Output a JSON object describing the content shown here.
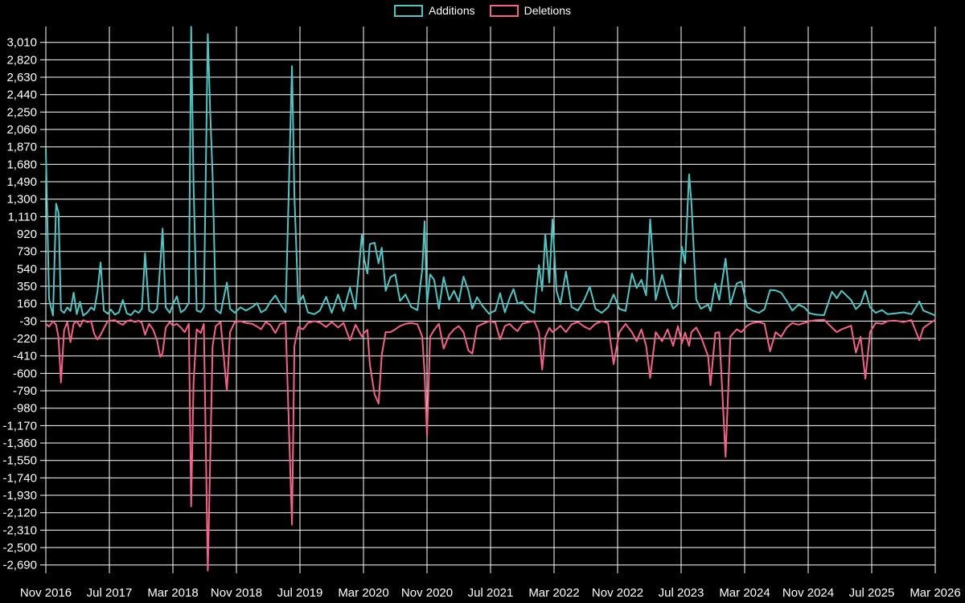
{
  "legend": {
    "additions_label": "Additions",
    "deletions_label": "Deletions"
  },
  "colors": {
    "background": "#000000",
    "grid": "#ffffff",
    "text": "#ffffff",
    "additions": "#4dc7c4",
    "deletions": "#f76188"
  },
  "chart_data": {
    "type": "line",
    "title": "",
    "xlabel": "",
    "ylabel": "",
    "legend_position": "top-center",
    "grid": true,
    "x_axis": {
      "tick_labels": [
        "Nov 2016",
        "Jul 2017",
        "Mar 2018",
        "Nov 2018",
        "Jul 2019",
        "Mar 2020",
        "Nov 2020",
        "Jul 2021",
        "Mar 2022",
        "Nov 2022",
        "Jul 2023",
        "Mar 2024",
        "Nov 2024",
        "Jul 2025",
        "Mar 2026"
      ],
      "months_between_ticks": 8,
      "total_months_span": 112
    },
    "y_axis": {
      "ticks": [
        3010,
        2820,
        2630,
        2440,
        2250,
        2060,
        1870,
        1680,
        1490,
        1300,
        1110,
        920,
        730,
        540,
        350,
        160,
        -30,
        -220,
        -410,
        -600,
        -790,
        -980,
        -1170,
        -1360,
        -1550,
        -1740,
        -1930,
        -2120,
        -2310,
        -2500,
        -2690
      ],
      "tick_labels": [
        "3,010",
        "2,820",
        "2,630",
        "2,440",
        "2,250",
        "2,060",
        "1,870",
        "1,680",
        "1,490",
        "1,300",
        "1,110",
        "920",
        "730",
        "540",
        "350",
        "160",
        "-30",
        "-220",
        "-410",
        "-600",
        "-790",
        "-980",
        "-1,170",
        "-1,360",
        "-1,550",
        "-1,740",
        "-1,930",
        "-2,120",
        "-2,310",
        "-2,500",
        "-2,690"
      ],
      "step": 190
    },
    "series_names": [
      "Additions",
      "Deletions"
    ],
    "points_format": "[months_since_Nov_2016, additions, deletions]",
    "points": [
      [
        0,
        1850,
        -60
      ],
      [
        0.4,
        210,
        -90
      ],
      [
        0.9,
        30,
        -30
      ],
      [
        1.3,
        1250,
        -70
      ],
      [
        1.6,
        1150,
        -210
      ],
      [
        1.9,
        90,
        -700
      ],
      [
        2.3,
        60,
        -130
      ],
      [
        2.7,
        120,
        -40
      ],
      [
        3.1,
        80,
        -260
      ],
      [
        3.5,
        280,
        -60
      ],
      [
        3.9,
        45,
        -30
      ],
      [
        4.3,
        180,
        -90
      ],
      [
        4.7,
        30,
        -20
      ],
      [
        5.2,
        60,
        -40
      ],
      [
        5.7,
        120,
        -30
      ],
      [
        6.1,
        90,
        -170
      ],
      [
        6.5,
        290,
        -230
      ],
      [
        6.9,
        610,
        -180
      ],
      [
        7.3,
        85,
        -110
      ],
      [
        7.8,
        50,
        -30
      ],
      [
        8.2,
        95,
        -25
      ],
      [
        8.7,
        40,
        -20
      ],
      [
        9.2,
        65,
        -50
      ],
      [
        9.7,
        200,
        -70
      ],
      [
        10.2,
        55,
        -30
      ],
      [
        10.7,
        35,
        -20
      ],
      [
        11.2,
        85,
        -40
      ],
      [
        11.7,
        60,
        -25
      ],
      [
        12.1,
        105,
        -50
      ],
      [
        12.5,
        710,
        -180
      ],
      [
        13,
        85,
        -60
      ],
      [
        13.5,
        60,
        -120
      ],
      [
        14,
        105,
        -240
      ],
      [
        14.4,
        570,
        -420
      ],
      [
        14.7,
        980,
        -380
      ],
      [
        15.1,
        120,
        -100
      ],
      [
        15.6,
        60,
        -40
      ],
      [
        16,
        150,
        -80
      ],
      [
        16.5,
        240,
        -60
      ],
      [
        17,
        65,
        -100
      ],
      [
        17.5,
        95,
        -150
      ],
      [
        18,
        170,
        -60
      ],
      [
        18.3,
        3180,
        -2050
      ],
      [
        18.6,
        1450,
        -700
      ],
      [
        19,
        85,
        -120
      ],
      [
        19.5,
        70,
        -160
      ],
      [
        19.9,
        120,
        -60
      ],
      [
        20.4,
        3100,
        -2750
      ],
      [
        20.7,
        2250,
        -1540
      ],
      [
        21,
        1550,
        -300
      ],
      [
        21.4,
        95,
        -85
      ],
      [
        22,
        55,
        -40
      ],
      [
        22.8,
        390,
        -790
      ],
      [
        23.2,
        105,
        -150
      ],
      [
        23.8,
        60,
        -40
      ],
      [
        24.5,
        120,
        -30
      ],
      [
        25.2,
        85,
        -50
      ],
      [
        26,
        125,
        -60
      ],
      [
        26.6,
        165,
        -90
      ],
      [
        27.1,
        65,
        -120
      ],
      [
        27.7,
        95,
        -40
      ],
      [
        28.3,
        185,
        -75
      ],
      [
        28.9,
        250,
        -160
      ],
      [
        29.5,
        160,
        -60
      ],
      [
        30.2,
        65,
        -45
      ],
      [
        31,
        2750,
        -2250
      ],
      [
        31.3,
        1340,
        -300
      ],
      [
        31.8,
        155,
        -95
      ],
      [
        32.4,
        250,
        -120
      ],
      [
        33,
        65,
        -50
      ],
      [
        33.8,
        45,
        -30
      ],
      [
        34.5,
        85,
        -45
      ],
      [
        35.3,
        235,
        -95
      ],
      [
        36,
        60,
        -40
      ],
      [
        36.8,
        260,
        -100
      ],
      [
        37.5,
        80,
        -50
      ],
      [
        38.3,
        335,
        -240
      ],
      [
        39,
        105,
        -70
      ],
      [
        39.8,
        915,
        -200
      ],
      [
        40.1,
        640,
        -155
      ],
      [
        40.5,
        490,
        -125
      ],
      [
        40.8,
        810,
        -500
      ],
      [
        41.4,
        825,
        -830
      ],
      [
        41.9,
        600,
        -930
      ],
      [
        42.3,
        770,
        -400
      ],
      [
        42.8,
        300,
        -150
      ],
      [
        43.4,
        450,
        -150
      ],
      [
        44,
        480,
        -120
      ],
      [
        44.6,
        190,
        -85
      ],
      [
        45.3,
        260,
        -60
      ],
      [
        46,
        125,
        -50
      ],
      [
        46.8,
        90,
        -65
      ],
      [
        47.4,
        535,
        -200
      ],
      [
        47.7,
        1060,
        -600
      ],
      [
        48,
        150,
        -1280
      ],
      [
        48.4,
        480,
        -200
      ],
      [
        48.9,
        420,
        -125
      ],
      [
        49.5,
        105,
        -60
      ],
      [
        50.1,
        450,
        -330
      ],
      [
        50.8,
        200,
        -180
      ],
      [
        51.4,
        300,
        -120
      ],
      [
        52,
        180,
        -85
      ],
      [
        52.6,
        455,
        -150
      ],
      [
        53.2,
        305,
        -350
      ],
      [
        53.7,
        105,
        -385
      ],
      [
        54.3,
        230,
        -90
      ],
      [
        55,
        135,
        -60
      ],
      [
        55.8,
        50,
        -30
      ],
      [
        56.6,
        85,
        -45
      ],
      [
        57.2,
        275,
        -230
      ],
      [
        57.8,
        65,
        -85
      ],
      [
        58.4,
        220,
        -60
      ],
      [
        58.9,
        320,
        -105
      ],
      [
        59.4,
        160,
        -140
      ],
      [
        60,
        180,
        -60
      ],
      [
        60.8,
        95,
        -40
      ],
      [
        61.5,
        60,
        -30
      ],
      [
        62.1,
        580,
        -150
      ],
      [
        62.5,
        300,
        -560
      ],
      [
        62.9,
        915,
        -200
      ],
      [
        63.4,
        390,
        -105
      ],
      [
        63.8,
        1080,
        -150
      ],
      [
        64.3,
        300,
        -120
      ],
      [
        64.8,
        155,
        -80
      ],
      [
        65.5,
        510,
        -150
      ],
      [
        66.2,
        125,
        -65
      ],
      [
        67,
        85,
        -40
      ],
      [
        67.8,
        200,
        -90
      ],
      [
        68.5,
        345,
        -120
      ],
      [
        69.2,
        105,
        -60
      ],
      [
        70,
        60,
        -30
      ],
      [
        70.8,
        120,
        -50
      ],
      [
        71.5,
        260,
        -500
      ],
      [
        72.2,
        105,
        -155
      ],
      [
        73,
        80,
        -60
      ],
      [
        73.8,
        490,
        -150
      ],
      [
        74.4,
        330,
        -250
      ],
      [
        75,
        420,
        -120
      ],
      [
        75.6,
        250,
        -300
      ],
      [
        76.1,
        1080,
        -650
      ],
      [
        76.8,
        200,
        -150
      ],
      [
        77.6,
        475,
        -250
      ],
      [
        78.3,
        250,
        -120
      ],
      [
        79,
        105,
        -300
      ],
      [
        79.6,
        155,
        -85
      ],
      [
        80.1,
        780,
        -270
      ],
      [
        80.5,
        600,
        -155
      ],
      [
        81,
        1570,
        -300
      ],
      [
        81.3,
        1260,
        -150
      ],
      [
        81.9,
        205,
        -100
      ],
      [
        82.5,
        105,
        -200
      ],
      [
        83.4,
        150,
        -415
      ],
      [
        83.7,
        80,
        -730
      ],
      [
        84.3,
        380,
        -160
      ],
      [
        84.8,
        200,
        -150
      ],
      [
        85.6,
        650,
        -1510
      ],
      [
        86.2,
        150,
        -200
      ],
      [
        87,
        380,
        -120
      ],
      [
        87.6,
        400,
        -150
      ],
      [
        88.3,
        125,
        -80
      ],
      [
        89,
        85,
        -50
      ],
      [
        89.8,
        60,
        -40
      ],
      [
        90.5,
        100,
        -60
      ],
      [
        91.2,
        310,
        -360
      ],
      [
        91.9,
        305,
        -150
      ],
      [
        92.6,
        280,
        -200
      ],
      [
        93.3,
        190,
        -100
      ],
      [
        94,
        85,
        -50
      ],
      [
        94.8,
        150,
        -70
      ],
      [
        95.5,
        120,
        -50
      ],
      [
        96.2,
        55,
        -30
      ],
      [
        97,
        40,
        -20
      ],
      [
        98,
        35,
        -15
      ],
      [
        99,
        290,
        -100
      ],
      [
        99.6,
        220,
        -150
      ],
      [
        100.2,
        300,
        -120
      ],
      [
        100.8,
        250,
        -100
      ],
      [
        101.4,
        200,
        -80
      ],
      [
        102,
        100,
        -375
      ],
      [
        102.6,
        150,
        -200
      ],
      [
        103.2,
        300,
        -660
      ],
      [
        103.8,
        120,
        -150
      ],
      [
        104.5,
        60,
        -50
      ],
      [
        105.3,
        90,
        -60
      ],
      [
        106,
        45,
        -30
      ],
      [
        107,
        55,
        -25
      ],
      [
        108,
        65,
        -40
      ],
      [
        109,
        45,
        -20
      ],
      [
        110,
        185,
        -240
      ],
      [
        110.5,
        85,
        -105
      ],
      [
        111.2,
        60,
        -60
      ],
      [
        112,
        30,
        -15
      ]
    ]
  }
}
